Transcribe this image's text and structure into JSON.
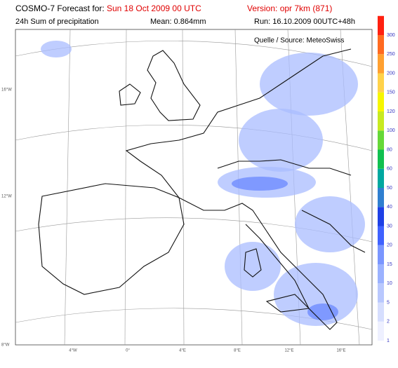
{
  "header": {
    "title_prefix": "COSMO-7 Forecast for:",
    "forecast_date": "Sun 18 Oct 2009 00 UTC",
    "version": "Version: opr 7km (871)",
    "product": "24h Sum of precipitation",
    "mean": "Mean: 0.864mm",
    "run": "Run: 16.10.2009 00UTC+48h"
  },
  "map": {
    "source": "Quelle / Source: MeteoSwiss",
    "left_labels": [
      "16°W",
      "12°W",
      "8°W"
    ],
    "bottom_labels": [
      "4°W",
      "0°",
      "4°E",
      "8°E",
      "12°E",
      "16°E"
    ]
  },
  "colorbar": {
    "levels": [
      1,
      2,
      5,
      10,
      15,
      20,
      30,
      40,
      50,
      60,
      80,
      100,
      120,
      150,
      200,
      250,
      300
    ],
    "colors": [
      "#eef0ff",
      "#d6defe",
      "#b9c8fe",
      "#9bb2ff",
      "#7a96ff",
      "#3f62ff",
      "#1e40e6",
      "#2f7fd0",
      "#00a8a0",
      "#10c050",
      "#66d838",
      "#c8ea20",
      "#f6f600",
      "#ffd24a",
      "#ffa030",
      "#ff6a20",
      "#ff2010"
    ]
  }
}
